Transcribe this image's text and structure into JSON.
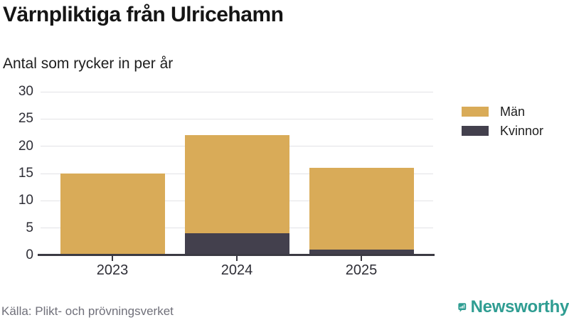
{
  "title": "Värnpliktiga från Ulricehamn",
  "subtitle": "Antal som rycker in per år",
  "source": "Källa: Plikt- och prövningsverket",
  "brand": {
    "name": "Newsworthy",
    "color": "#2F9D92",
    "icon": "speech-bubble-bar-chart-exclamation"
  },
  "legend": [
    {
      "label": "Män",
      "color": "#D9AB58"
    },
    {
      "label": "Kvinnor",
      "color": "#43404D"
    }
  ],
  "chart_data": {
    "type": "bar",
    "stacked": true,
    "title": "Värnpliktiga från Ulricehamn",
    "subtitle": "Antal som rycker in per år",
    "categories": [
      "2023",
      "2024",
      "2025"
    ],
    "series": [
      {
        "name": "Kvinnor",
        "color": "#43404D",
        "values": [
          0,
          4,
          1
        ]
      },
      {
        "name": "Män",
        "color": "#D9AB58",
        "values": [
          15,
          18,
          15
        ]
      }
    ],
    "totals": [
      15,
      22,
      16
    ],
    "xlabel": "",
    "ylabel": "",
    "ylim": [
      0,
      30
    ],
    "yticks": [
      0,
      5,
      10,
      15,
      20,
      25,
      30
    ],
    "grid": true,
    "grid_color": "#e3e3e6",
    "axis_color": "#3b3a43",
    "legend_position": "right"
  }
}
